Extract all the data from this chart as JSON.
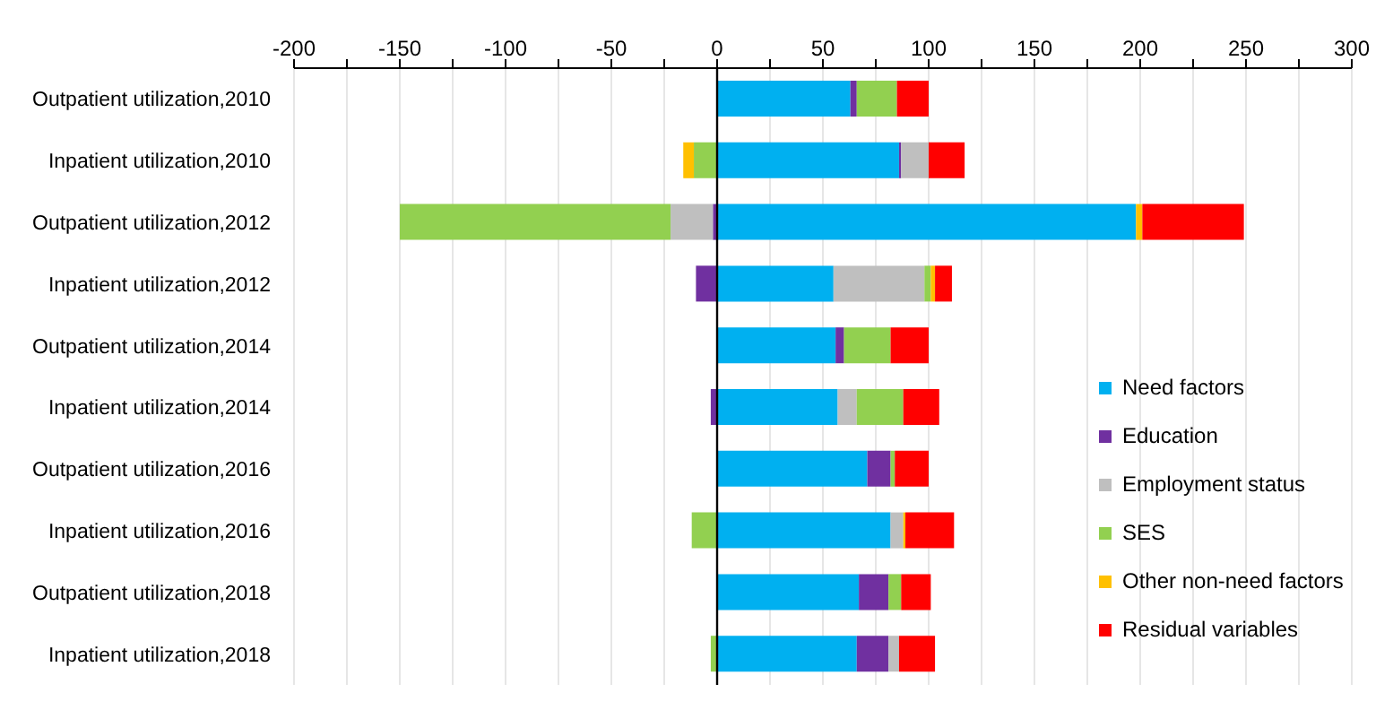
{
  "chart_data": {
    "type": "bar",
    "orientation": "horizontal",
    "stacked": true,
    "categories": [
      "Outpatient utilization,2010",
      "Inpatient utilization,2010",
      "Outpatient utilization,2012",
      "Inpatient utilization,2012",
      "Outpatient utilization,2014",
      "Inpatient utilization,2014",
      "Outpatient utilization,2016",
      "Inpatient utilization,2016",
      "Outpatient utilization,2018",
      "Inpatient utilization,2018"
    ],
    "series": [
      {
        "name": "Need factors",
        "color": "#00b0f0",
        "values": [
          63,
          86,
          198,
          55,
          56,
          57,
          71,
          82,
          67,
          66
        ]
      },
      {
        "name": "Education",
        "color": "#7030a0",
        "values": [
          3,
          1,
          -2,
          -10,
          4,
          -3,
          11,
          null,
          14,
          15
        ]
      },
      {
        "name": "Employment status",
        "color": "#bfbfbf",
        "values": [
          null,
          13,
          -20,
          43,
          null,
          9,
          null,
          6,
          null,
          5
        ]
      },
      {
        "name": "SES",
        "color": "#92d050",
        "values": [
          19,
          -11,
          -128,
          3,
          22,
          22,
          2,
          -12,
          6,
          -3
        ]
      },
      {
        "name": "Other non-need factors",
        "color": "#ffc000",
        "values": [
          null,
          -5,
          3,
          2,
          null,
          null,
          null,
          1,
          null,
          null
        ]
      },
      {
        "name": "Residual variables",
        "color": "#ff0000",
        "values": [
          15,
          17,
          48,
          8,
          18,
          17,
          16,
          23,
          14,
          17
        ]
      }
    ],
    "xlim": [
      -200,
      300
    ],
    "xticks": [
      -200,
      {
        "value": -175,
        "label": null
      },
      -150,
      {
        "value": -125,
        "label": null
      },
      -100,
      {
        "value": -75,
        "label": null
      },
      -50,
      {
        "value": -25,
        "label": null
      },
      0,
      {
        "value": 25,
        "label": null
      },
      50,
      {
        "value": 75,
        "label": null
      },
      100,
      {
        "value": 125,
        "label": null
      },
      150,
      {
        "value": 175,
        "label": null
      },
      200,
      {
        "value": 225,
        "label": null
      },
      250,
      {
        "value": 275,
        "label": null
      },
      300
    ],
    "grid": "x",
    "legend": "right"
  }
}
